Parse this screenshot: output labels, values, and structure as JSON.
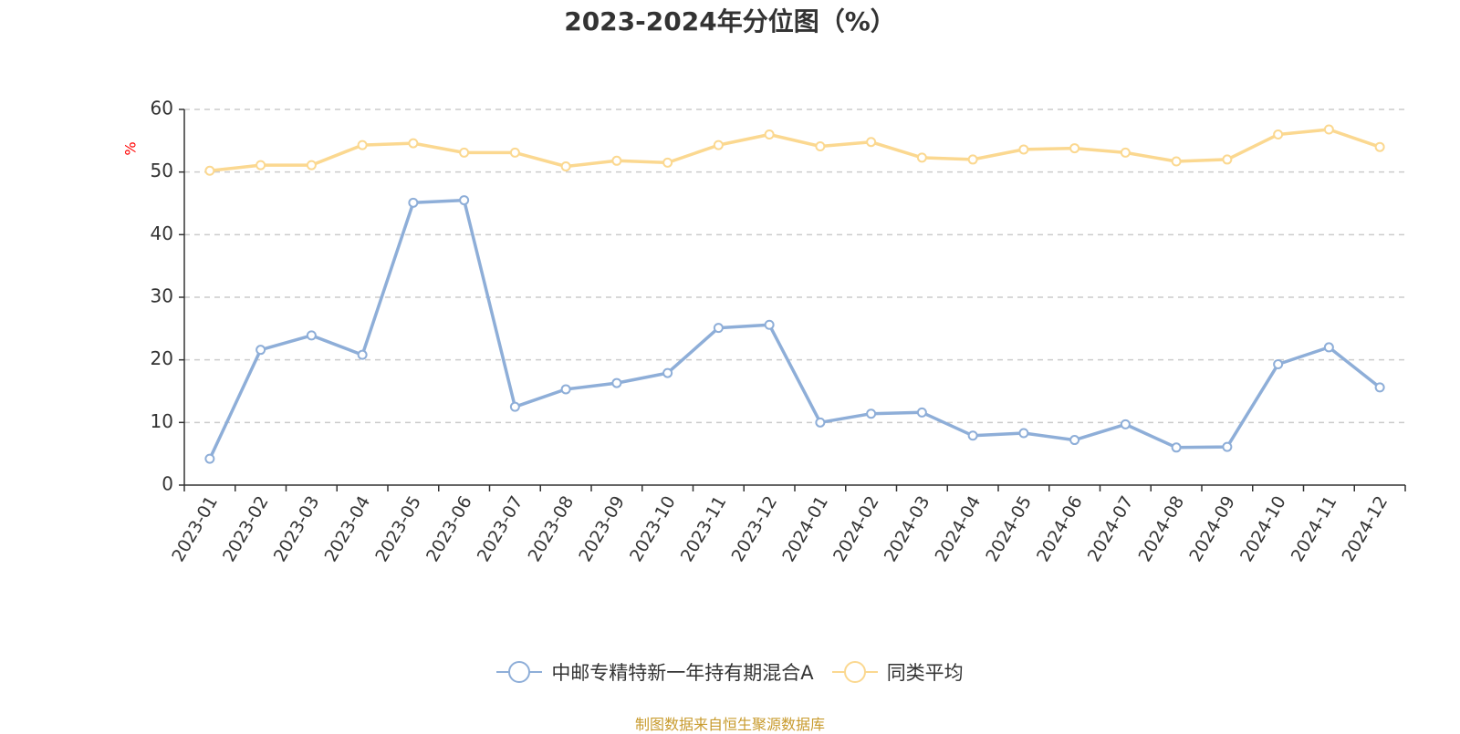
{
  "chart_data": {
    "type": "line",
    "title": "2023-2024年分位图（%）",
    "ylabel": "%",
    "ylim": [
      0,
      60
    ],
    "yticks": [
      0,
      10,
      20,
      30,
      40,
      50,
      60
    ],
    "grid": true,
    "legend_position": "bottom",
    "categories": [
      "2023-01",
      "2023-02",
      "2023-03",
      "2023-04",
      "2023-05",
      "2023-06",
      "2023-07",
      "2023-08",
      "2023-09",
      "2023-10",
      "2023-11",
      "2023-12",
      "2024-01",
      "2024-02",
      "2024-03",
      "2024-04",
      "2024-05",
      "2024-06",
      "2024-07",
      "2024-08",
      "2024-09",
      "2024-10",
      "2024-11",
      "2024-12"
    ],
    "series": [
      {
        "name": "中邮专精特新一年持有期混合A",
        "color": "#8eaed8",
        "values": [
          4.2,
          21.6,
          23.9,
          20.8,
          45.1,
          45.5,
          12.5,
          15.3,
          16.3,
          17.9,
          25.1,
          25.6,
          10.0,
          11.4,
          11.6,
          7.9,
          8.3,
          7.2,
          9.7,
          6.0,
          6.1,
          19.3,
          22.0,
          15.6
        ]
      },
      {
        "name": "同类平均",
        "color": "#fbd890",
        "values": [
          50.2,
          51.1,
          51.1,
          54.3,
          54.6,
          53.1,
          53.1,
          50.9,
          51.8,
          51.5,
          54.3,
          56.0,
          54.1,
          54.8,
          52.3,
          52.0,
          53.6,
          53.8,
          53.1,
          51.7,
          52.0,
          56.0,
          56.8,
          54.0
        ]
      }
    ]
  },
  "source": {
    "text": "制图数据来自恒生聚源数据库",
    "color": "#c89b2e"
  },
  "colors": {
    "axis": "#333333",
    "grid": "#cccccc",
    "ylabel": "#ff0000"
  }
}
